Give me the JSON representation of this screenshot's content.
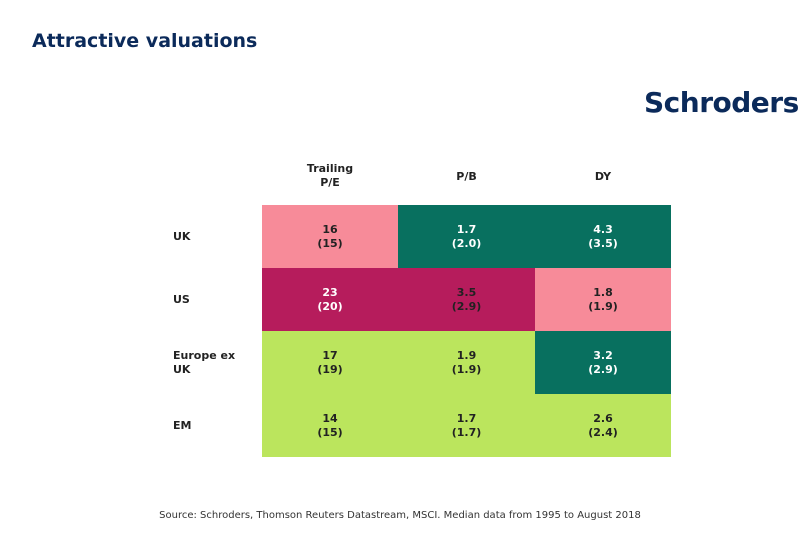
{
  "header": {
    "title": "Attractive valuations",
    "logo_text": "Schroders"
  },
  "colors": {
    "teal": "#08705f",
    "pink": "#f78b99",
    "magenta": "#b61c5c",
    "lime": "#bbe55d",
    "navy": "#0b2a5a"
  },
  "chart_data": {
    "type": "table",
    "title": "Attractive valuations",
    "columns": [
      {
        "label": "Trailing P/E",
        "line1": "Trailing",
        "line2": "P/E"
      },
      {
        "label": "P/B",
        "line1": "P/B",
        "line2": ""
      },
      {
        "label": "DY",
        "line1": "DY",
        "line2": ""
      }
    ],
    "rows": [
      {
        "label": "UK",
        "line1": "UK",
        "line2": "",
        "cells": [
          {
            "value": "16",
            "median": "(15)",
            "color": "#f78b99",
            "text_color": "#222222"
          },
          {
            "value": "1.7",
            "median": "(2.0)",
            "color": "#08705f",
            "text_color": "#ffffff"
          },
          {
            "value": "4.3",
            "median": "(3.5)",
            "color": "#08705f",
            "text_color": "#ffffff"
          }
        ]
      },
      {
        "label": "US",
        "line1": "US",
        "line2": "",
        "cells": [
          {
            "value": "23",
            "median": "(20)",
            "color": "#b61c5c",
            "text_color": "#ffffff"
          },
          {
            "value": "3.5",
            "median": "(2.9)",
            "color": "#b61c5c",
            "text_color": "#222222"
          },
          {
            "value": "1.8",
            "median": "(1.9)",
            "color": "#f78b99",
            "text_color": "#222222"
          }
        ]
      },
      {
        "label": "Europe ex UK",
        "line1": "Europe ex",
        "line2": "UK",
        "cells": [
          {
            "value": "17",
            "median": "(19)",
            "color": "#bbe55d",
            "text_color": "#222222"
          },
          {
            "value": "1.9",
            "median": "(1.9)",
            "color": "#bbe55d",
            "text_color": "#222222"
          },
          {
            "value": "3.2",
            "median": "(2.9)",
            "color": "#08705f",
            "text_color": "#ffffff"
          }
        ]
      },
      {
        "label": "EM",
        "line1": "EM",
        "line2": "",
        "cells": [
          {
            "value": "14",
            "median": "(15)",
            "color": "#bbe55d",
            "text_color": "#222222"
          },
          {
            "value": "1.7",
            "median": "(1.7)",
            "color": "#bbe55d",
            "text_color": "#222222"
          },
          {
            "value": "2.6",
            "median": "(2.4)",
            "color": "#bbe55d",
            "text_color": "#222222"
          }
        ]
      }
    ]
  },
  "footer": {
    "source": "Source: Schroders, Thomson Reuters Datastream, MSCI. Median data from 1995 to August 2018"
  }
}
